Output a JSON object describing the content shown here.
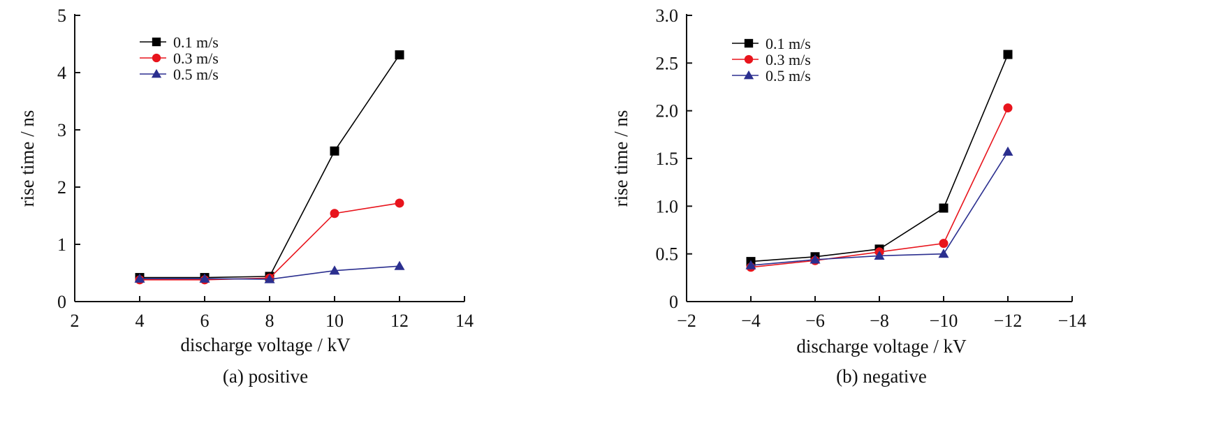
{
  "chart_data": [
    {
      "type": "line",
      "caption": "(a) positive",
      "xlabel": "discharge voltage / kV",
      "ylabel": "rise time / ns",
      "xlim": [
        2,
        14
      ],
      "ylim": [
        0,
        5
      ],
      "xticks": [
        2,
        4,
        6,
        8,
        10,
        12,
        14
      ],
      "xtick_labels": [
        "2",
        "4",
        "6",
        "8",
        "10",
        "12",
        "14"
      ],
      "yticks": [
        0,
        1,
        2,
        3,
        4,
        5
      ],
      "ytick_labels": [
        "0",
        "1",
        "2",
        "3",
        "4",
        "5"
      ],
      "x_reversed": false,
      "legend_position": "top-left",
      "x": [
        4,
        6,
        8,
        10,
        12
      ],
      "series": [
        {
          "name": "0.1 m/s",
          "values": [
            0.42,
            0.42,
            0.44,
            2.63,
            4.31
          ],
          "color": "#000000",
          "marker": "square"
        },
        {
          "name": "0.3 m/s",
          "values": [
            0.38,
            0.38,
            0.41,
            1.54,
            1.72
          ],
          "color": "#e8141c",
          "marker": "circle"
        },
        {
          "name": "0.5 m/s",
          "values": [
            0.4,
            0.4,
            0.39,
            0.54,
            0.62
          ],
          "color": "#2b2f8f",
          "marker": "triangle"
        }
      ]
    },
    {
      "type": "line",
      "caption": "(b) negative",
      "xlabel": "discharge voltage / kV",
      "ylabel": "rise time / ns",
      "xlim": [
        -2,
        -14
      ],
      "ylim": [
        0,
        3.0
      ],
      "xticks": [
        -2,
        -4,
        -6,
        -8,
        -10,
        -12,
        -14
      ],
      "xtick_labels": [
        "−2",
        "−4",
        "−6",
        "−8",
        "−10",
        "−12",
        "−14"
      ],
      "yticks": [
        0,
        0.5,
        1.0,
        1.5,
        2.0,
        2.5,
        3.0
      ],
      "ytick_labels": [
        "0",
        "0.5",
        "1.0",
        "1.5",
        "2.0",
        "2.5",
        "3.0"
      ],
      "x_reversed": true,
      "legend_position": "top-left",
      "x": [
        -4,
        -6,
        -8,
        -10,
        -12
      ],
      "series": [
        {
          "name": "0.1 m/s",
          "values": [
            0.42,
            0.47,
            0.55,
            0.98,
            2.59
          ],
          "color": "#000000",
          "marker": "square"
        },
        {
          "name": "0.3 m/s",
          "values": [
            0.36,
            0.43,
            0.52,
            0.61,
            2.03
          ],
          "color": "#e8141c",
          "marker": "circle"
        },
        {
          "name": "0.5 m/s",
          "values": [
            0.38,
            0.44,
            0.48,
            0.5,
            1.57
          ],
          "color": "#2b2f8f",
          "marker": "triangle"
        }
      ]
    }
  ]
}
